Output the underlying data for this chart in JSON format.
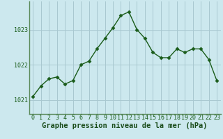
{
  "x": [
    0,
    1,
    2,
    3,
    4,
    5,
    6,
    7,
    8,
    9,
    10,
    11,
    12,
    13,
    14,
    15,
    16,
    17,
    18,
    19,
    20,
    21,
    22,
    23
  ],
  "y": [
    1021.1,
    1021.4,
    1021.6,
    1021.65,
    1021.45,
    1021.55,
    1022.0,
    1022.1,
    1022.45,
    1022.75,
    1023.05,
    1023.4,
    1023.5,
    1023.0,
    1022.75,
    1022.35,
    1022.2,
    1022.2,
    1022.45,
    1022.35,
    1022.45,
    1022.45,
    1022.15,
    1021.55
  ],
  "line_color": "#1a5c1a",
  "marker": "D",
  "markersize": 2.5,
  "linewidth": 1.0,
  "bg_color": "#cce8ee",
  "grid_color": "#a8c8d0",
  "xlabel": "Graphe pression niveau de la mer (hPa)",
  "xlabel_color": "#1a4c1a",
  "xlabel_fontsize": 7.5,
  "xlabel_fontweight": "bold",
  "ylabel_ticks": [
    1021,
    1022,
    1023
  ],
  "ylim": [
    1020.6,
    1023.8
  ],
  "xlim": [
    -0.5,
    23.5
  ],
  "tick_color": "#1a5c1a",
  "tick_fontsize": 6.0,
  "spine_color": "#5a8a5a"
}
